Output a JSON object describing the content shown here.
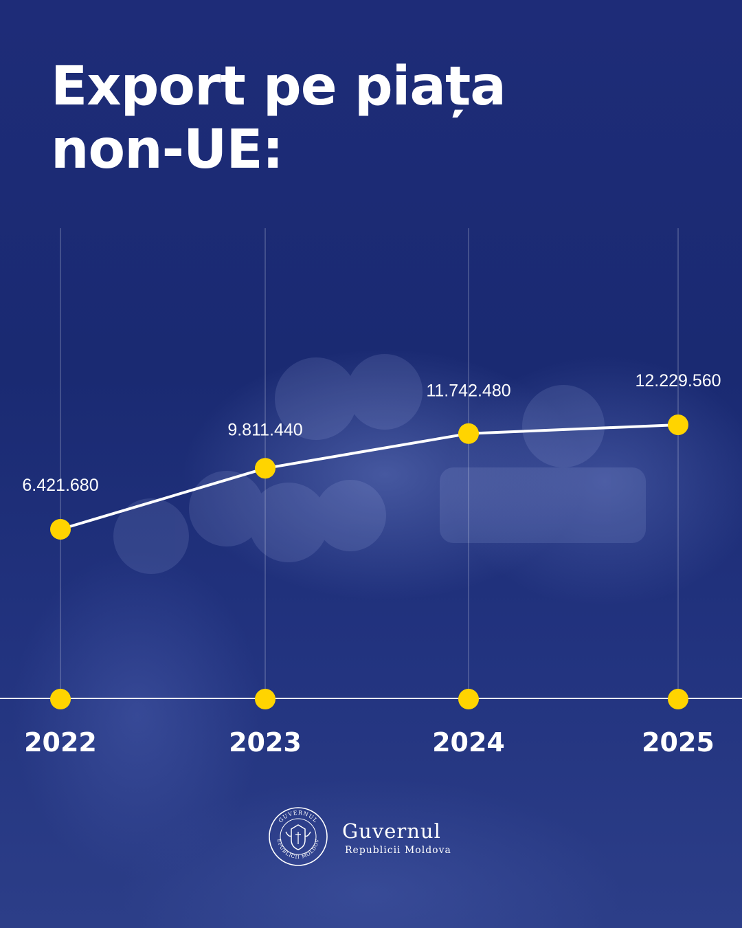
{
  "title_line1": "Export pe piața",
  "title_line2": "non-UE:",
  "colors": {
    "background": "#1e2c78",
    "accent": "#ffd400",
    "line": "#ffffff"
  },
  "chart_data": {
    "type": "line",
    "title": "Export pe piața non-UE:",
    "x": [
      "2022",
      "2023",
      "2024",
      "2025"
    ],
    "values": [
      6421680,
      9811440,
      11742480,
      12229560
    ],
    "data_labels": [
      "6.421.680",
      "9.811.440",
      "11.742.480",
      "12.229.560"
    ],
    "grid": "vertical",
    "legend": "none"
  },
  "footer": {
    "org_name": "Guvernul",
    "org_subtitle": "Republicii Moldova",
    "seal_text_top": "GUVERNUL",
    "seal_text_bottom": "REPUBLICII MOLDOVA",
    "seal_icon": "coat-of-arms-seal-icon"
  }
}
